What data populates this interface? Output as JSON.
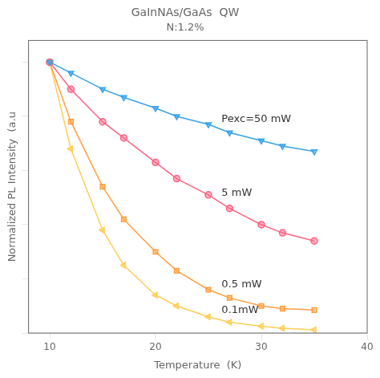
{
  "chart_data": {
    "type": "line",
    "title": "GaInNAs/GaAs  QW",
    "subtitle": "N:1.2%",
    "x_label": "Temperature  (K)",
    "y_label": "Normalized PL Intensity  (a.u",
    "x": [
      10,
      12,
      15,
      17,
      20,
      22,
      25,
      27,
      30,
      32,
      35
    ],
    "series": [
      {
        "name": "Pexc=50 mW",
        "marker": "triangle_down",
        "values": [
          1.0,
          0.96,
          0.9,
          0.87,
          0.83,
          0.8,
          0.77,
          0.74,
          0.71,
          0.69,
          0.67
        ]
      },
      {
        "name": "5 mW",
        "marker": "circle",
        "values": [
          1.0,
          0.9,
          0.78,
          0.72,
          0.63,
          0.57,
          0.51,
          0.46,
          0.4,
          0.37,
          0.34
        ]
      },
      {
        "name": "0.5 mW",
        "marker": "square",
        "values": [
          1.0,
          0.78,
          0.54,
          0.42,
          0.3,
          0.23,
          0.16,
          0.13,
          0.1,
          0.09,
          0.085
        ]
      },
      {
        "name": "0.1mW",
        "marker": "triangle_left",
        "values": [
          1.0,
          0.68,
          0.38,
          0.25,
          0.14,
          0.1,
          0.06,
          0.04,
          0.025,
          0.018,
          0.012
        ]
      }
    ],
    "xlim": [
      8,
      40
    ],
    "xticks": [
      10,
      20,
      30,
      40
    ],
    "ylim": [
      0.0,
      1.08
    ],
    "yticks": [
      0,
      0.2,
      0.4,
      0.6,
      0.8,
      1.0
    ],
    "tick_labels": "x",
    "grid": false
  }
}
